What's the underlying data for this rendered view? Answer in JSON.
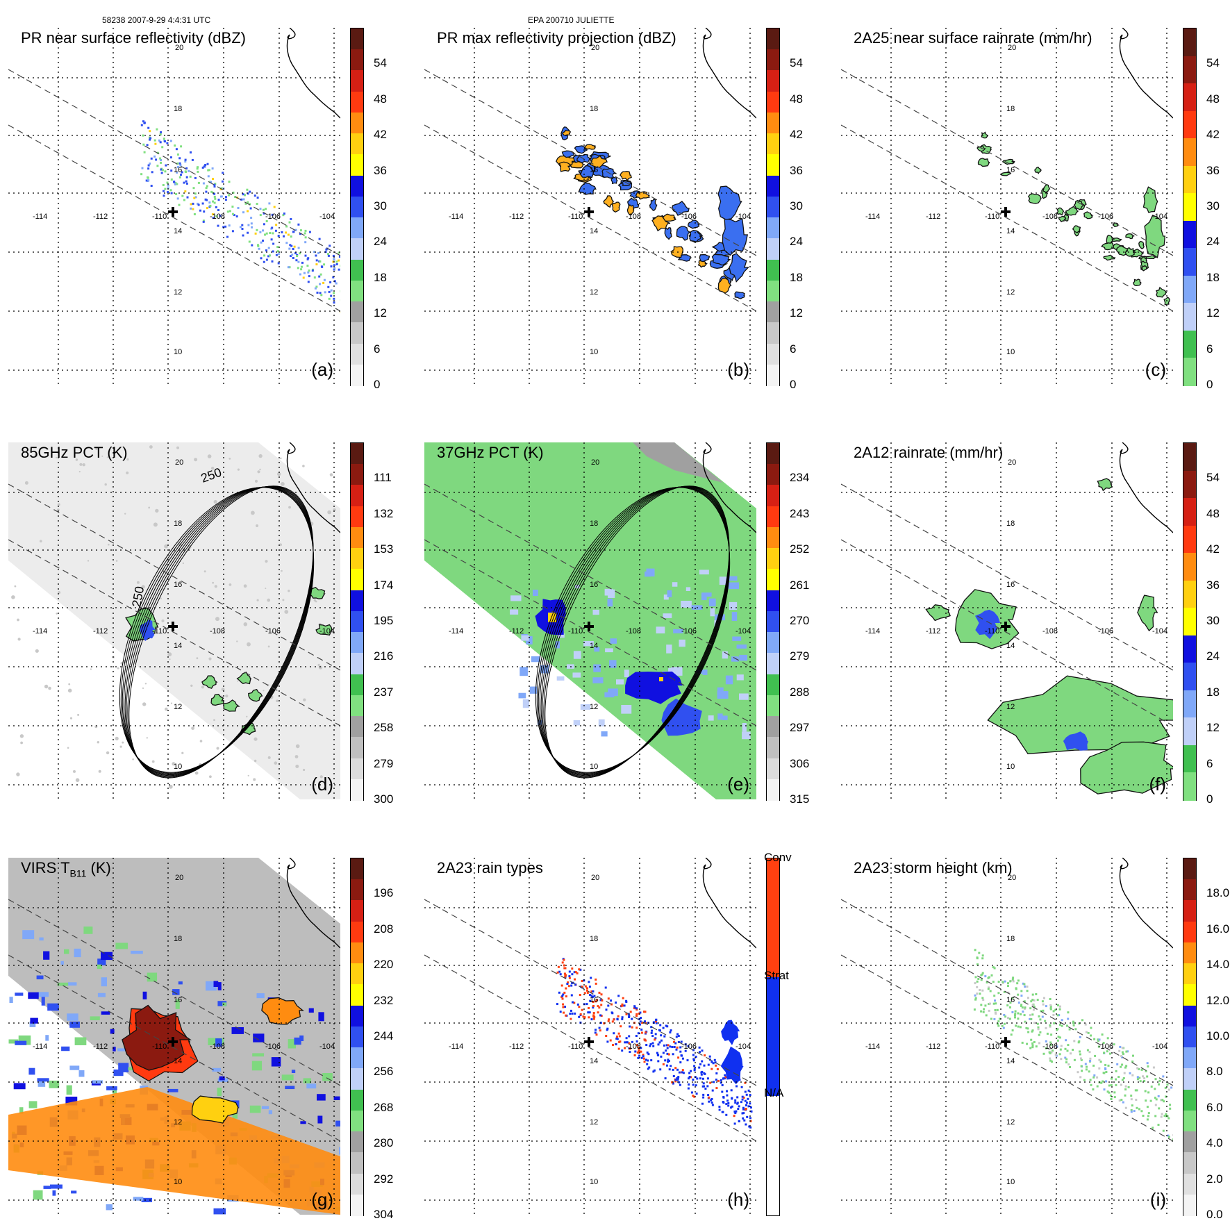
{
  "header": {
    "orbit_info": "58238 2007-9-29 4:4:31 UTC",
    "storm_info": "EPA 200710 JULIETTE"
  },
  "map_labels": {
    "lon_labels": [
      "-114",
      "-112",
      "-110",
      "-108",
      "-106",
      "-104"
    ],
    "lat_labels": [
      "20",
      "18",
      "16",
      "14",
      "12",
      "10"
    ]
  },
  "chart_data": [
    {
      "id": "a",
      "type": "heatmap",
      "title": "PR near surface reflectivity (dBZ)",
      "panel_label": "(a)",
      "cbar_kind": "dbz",
      "cbar_ticks": [
        "54",
        "48",
        "42",
        "36",
        "30",
        "24",
        "18",
        "12",
        "6",
        "0"
      ],
      "overlay": "pr_sparse"
    },
    {
      "id": "b",
      "type": "heatmap",
      "title": "PR max reflectivity projection (dBZ)",
      "panel_label": "(b)",
      "cbar_kind": "dbz",
      "cbar_ticks": [
        "54",
        "48",
        "42",
        "36",
        "30",
        "24",
        "18",
        "12",
        "6",
        "0"
      ],
      "overlay": "pr_blue"
    },
    {
      "id": "c",
      "type": "heatmap",
      "title": "2A25 near surface rainrate (mm/hr)",
      "panel_label": "(c)",
      "cbar_kind": "rain",
      "cbar_ticks": [
        "54",
        "48",
        "42",
        "36",
        "30",
        "24",
        "18",
        "12",
        "6",
        "0"
      ],
      "overlay": "pr_green"
    },
    {
      "id": "d",
      "type": "heatmap",
      "title": "85GHz PCT (K)",
      "panel_label": "(d)",
      "cbar_kind": "pct",
      "cbar_ticks": [
        "111",
        "132",
        "153",
        "174",
        "195",
        "216",
        "237",
        "258",
        "279",
        "300"
      ],
      "overlay": "pct85",
      "contour_label": "250"
    },
    {
      "id": "e",
      "type": "heatmap",
      "title": "37GHz PCT (K)",
      "panel_label": "(e)",
      "cbar_kind": "pct",
      "cbar_ticks": [
        "234",
        "243",
        "252",
        "261",
        "270",
        "279",
        "288",
        "297",
        "306",
        "315"
      ],
      "overlay": "pct37"
    },
    {
      "id": "f",
      "type": "heatmap",
      "title": "2A12 rainrate (mm/hr)",
      "panel_label": "(f)",
      "cbar_kind": "rain",
      "cbar_ticks": [
        "54",
        "48",
        "42",
        "36",
        "30",
        "24",
        "18",
        "12",
        "6",
        "0"
      ],
      "overlay": "tmi_rain"
    },
    {
      "id": "g",
      "type": "heatmap",
      "title": "VIRS T",
      "title_sub": "B11",
      "title_suffix": " (K)",
      "panel_label": "(g)",
      "cbar_kind": "virs",
      "cbar_ticks": [
        "196",
        "208",
        "220",
        "232",
        "244",
        "256",
        "268",
        "280",
        "292",
        "304"
      ],
      "overlay": "virs"
    },
    {
      "id": "h",
      "type": "heatmap",
      "title": "2A23 rain types",
      "panel_label": "(h)",
      "cbar_kind": "types",
      "cbar_ticks": [
        "Conv",
        "Strat",
        "N/A"
      ],
      "overlay": "types"
    },
    {
      "id": "i",
      "type": "heatmap",
      "title": "2A23 storm height (km)",
      "panel_label": "(i)",
      "cbar_kind": "height",
      "cbar_ticks": [
        "18.0",
        "16.0",
        "14.0",
        "12.0",
        "10.0",
        "8.0",
        "6.0",
        "4.0",
        "2.0",
        "0.0"
      ],
      "overlay": "height"
    }
  ],
  "colors": {
    "dbz": [
      "#5a1a12",
      "#8b1a10",
      "#d62014",
      "#ff3a10",
      "#ff8c10",
      "#ffd010",
      "#ffff00",
      "#1010e0",
      "#3050f0",
      "#80a8f8",
      "#c0d0f8",
      "#40c050",
      "#80e080",
      "#a0a0a0",
      "#c8c8c8",
      "#e0e0e0",
      "#f4f4f4"
    ],
    "rain": [
      "#5a1a12",
      "#8b1a10",
      "#d62014",
      "#ff3a10",
      "#ff8c10",
      "#ffd010",
      "#ffff00",
      "#1010e0",
      "#3050f0",
      "#80a8f8",
      "#c0d0f8",
      "#40c050",
      "#80e080"
    ],
    "green": "#7fd87f",
    "blue": "#3a5ff0",
    "conv": "#ff4010",
    "strat": "#1030f0"
  }
}
